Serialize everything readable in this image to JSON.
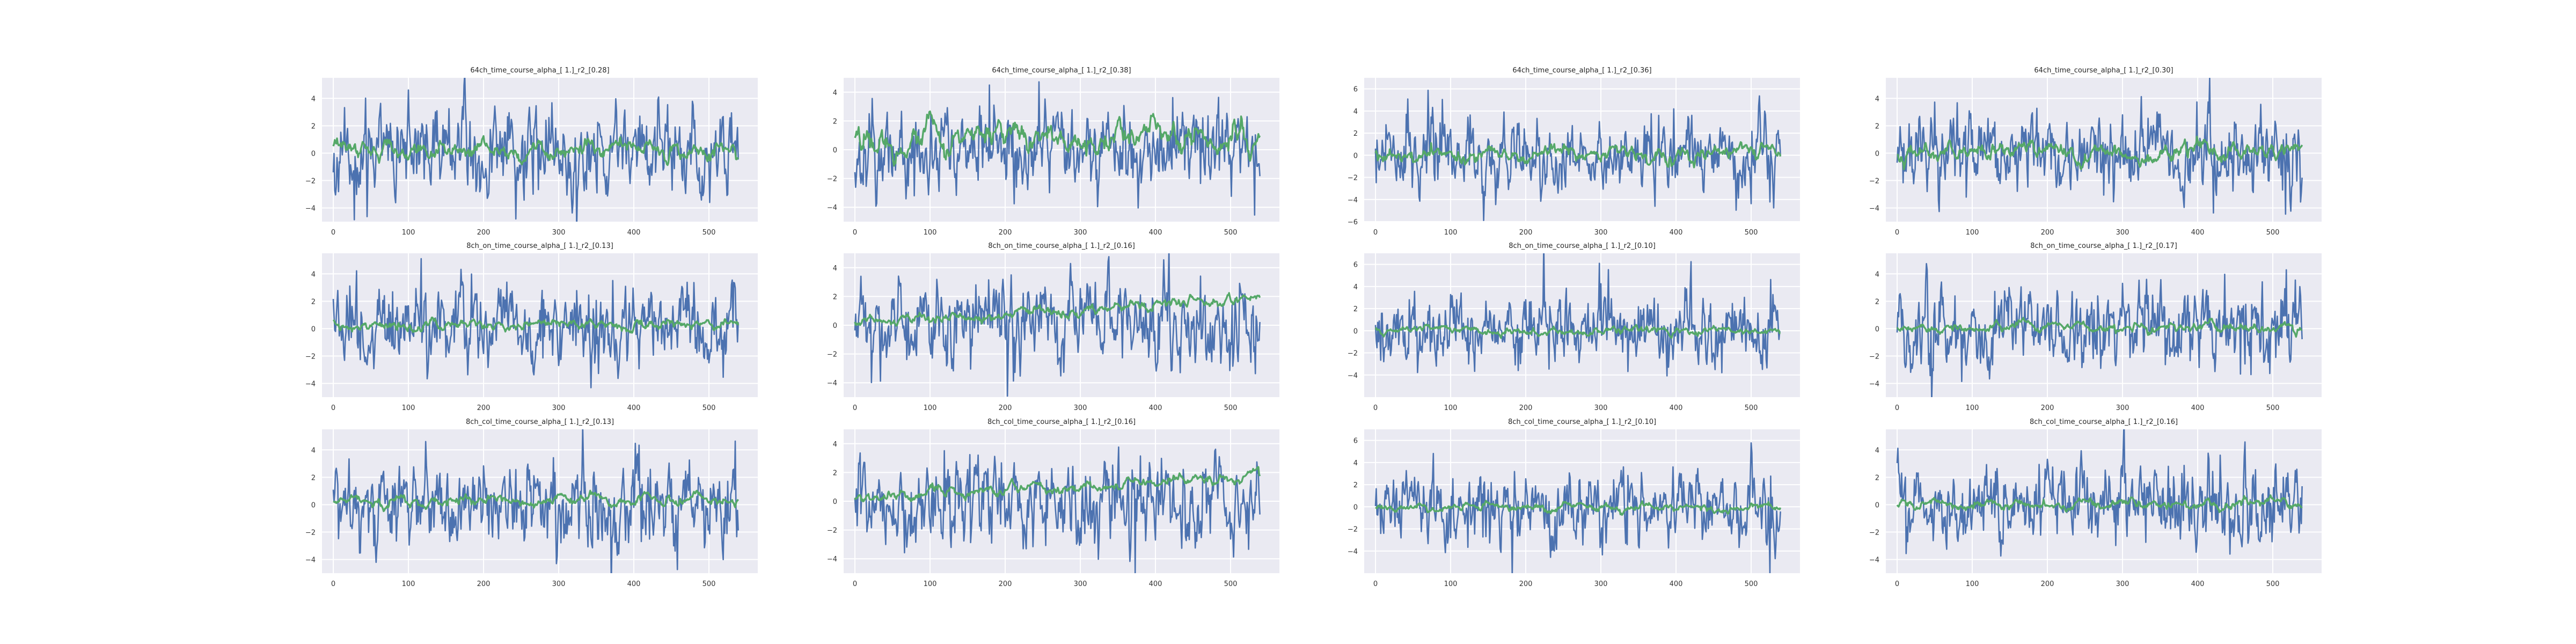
{
  "chart_data": [
    {
      "type": "line",
      "title": "64ch_time_course_alpha_[ 1.]_r2_[0.28]",
      "xlim": [
        -15,
        565
      ],
      "ylim": [
        -5,
        5.5
      ],
      "xticks": [
        0,
        100,
        200,
        300,
        400,
        500
      ],
      "yticks": [
        -4,
        -2,
        0,
        2,
        4
      ],
      "n_points": 540,
      "series": [
        {
          "amplitude": 1.45,
          "seed": 11
        },
        {
          "amplitude": 0.48,
          "offset": 0.25,
          "seed": 12
        }
      ]
    },
    {
      "type": "line",
      "title": "64ch_time_course_alpha_[ 1.]_r2_[0.38]",
      "xlim": [
        -15,
        565
      ],
      "ylim": [
        -5,
        5
      ],
      "xticks": [
        0,
        100,
        200,
        300,
        400,
        500
      ],
      "yticks": [
        -4,
        -2,
        0,
        2,
        4
      ],
      "n_points": 540,
      "series": [
        {
          "amplitude": 1.5,
          "seed": 21
        },
        {
          "amplitude": 0.75,
          "offset": 0.8,
          "seed": 22
        }
      ]
    },
    {
      "type": "line",
      "title": "64ch_time_course_alpha_[ 1.]_r2_[0.36]",
      "xlim": [
        -15,
        565
      ],
      "ylim": [
        -6,
        7
      ],
      "xticks": [
        0,
        100,
        200,
        300,
        400,
        500
      ],
      "yticks": [
        -6,
        -4,
        -2,
        0,
        2,
        4,
        6
      ],
      "n_points": 540,
      "series": [
        {
          "amplitude": 1.55,
          "seed": 31
        },
        {
          "amplitude": 0.55,
          "offset": 0.1,
          "seed": 32
        }
      ]
    },
    {
      "type": "line",
      "title": "64ch_time_course_alpha_[ 1.]_r2_[0.30]",
      "xlim": [
        -15,
        565
      ],
      "ylim": [
        -5,
        5.5
      ],
      "xticks": [
        0,
        100,
        200,
        300,
        400,
        500
      ],
      "yticks": [
        -4,
        -2,
        0,
        2,
        4
      ],
      "n_points": 540,
      "series": [
        {
          "amplitude": 1.45,
          "seed": 41
        },
        {
          "amplitude": 0.5,
          "offset": 0.1,
          "seed": 42
        }
      ]
    },
    {
      "type": "line",
      "title": "8ch_on_time_course_alpha_[ 1.]_r2_[0.13]",
      "xlim": [
        -15,
        565
      ],
      "ylim": [
        -5,
        5.5
      ],
      "xticks": [
        0,
        100,
        200,
        300,
        400,
        500
      ],
      "yticks": [
        -4,
        -2,
        0,
        2,
        4
      ],
      "n_points": 540,
      "series": [
        {
          "amplitude": 1.45,
          "seed": 51
        },
        {
          "amplitude": 0.3,
          "offset": 0.35,
          "seed": 52
        }
      ]
    },
    {
      "type": "line",
      "title": "8ch_on_time_course_alpha_[ 1.]_r2_[0.16]",
      "xlim": [
        -15,
        565
      ],
      "ylim": [
        -5,
        5
      ],
      "xticks": [
        0,
        100,
        200,
        300,
        400,
        500
      ],
      "yticks": [
        -4,
        -2,
        0,
        2,
        4
      ],
      "n_points": 540,
      "series": [
        {
          "amplitude": 1.5,
          "seed": 61
        },
        {
          "amplitude": 0.3,
          "offset": 0.2,
          "trend": 1.5,
          "seed": 62
        }
      ]
    },
    {
      "type": "line",
      "title": "8ch_on_time_course_alpha_[ 1.]_r2_[0.10]",
      "xlim": [
        -15,
        565
      ],
      "ylim": [
        -6,
        7
      ],
      "xticks": [
        0,
        100,
        200,
        300,
        400,
        500
      ],
      "yticks": [
        -4,
        -2,
        0,
        2,
        4,
        6
      ],
      "n_points": 540,
      "series": [
        {
          "amplitude": 1.55,
          "seed": 71
        },
        {
          "amplitude": 0.3,
          "offset": 0.0,
          "seed": 72
        }
      ]
    },
    {
      "type": "line",
      "title": "8ch_on_time_course_alpha_[ 1.]_r2_[0.17]",
      "xlim": [
        -15,
        565
      ],
      "ylim": [
        -5,
        5.5
      ],
      "xticks": [
        0,
        100,
        200,
        300,
        400,
        500
      ],
      "yticks": [
        -4,
        -2,
        0,
        2,
        4
      ],
      "n_points": 540,
      "series": [
        {
          "amplitude": 1.45,
          "seed": 81
        },
        {
          "amplitude": 0.28,
          "offset": 0.05,
          "seed": 82
        }
      ]
    },
    {
      "type": "line",
      "title": "8ch_col_time_course_alpha_[ 1.]_r2_[0.13]",
      "xlim": [
        -15,
        565
      ],
      "ylim": [
        -5,
        5.5
      ],
      "xticks": [
        0,
        100,
        200,
        300,
        400,
        500
      ],
      "yticks": [
        -4,
        -2,
        0,
        2,
        4
      ],
      "n_points": 540,
      "series": [
        {
          "amplitude": 1.45,
          "seed": 91
        },
        {
          "amplitude": 0.3,
          "offset": 0.35,
          "seed": 92
        }
      ]
    },
    {
      "type": "line",
      "title": "8ch_col_time_course_alpha_[ 1.]_r2_[0.16]",
      "xlim": [
        -15,
        565
      ],
      "ylim": [
        -5,
        5
      ],
      "xticks": [
        0,
        100,
        200,
        300,
        400,
        500
      ],
      "yticks": [
        -4,
        -2,
        0,
        2,
        4
      ],
      "n_points": 540,
      "series": [
        {
          "amplitude": 1.5,
          "seed": 101
        },
        {
          "amplitude": 0.3,
          "offset": 0.2,
          "trend": 1.5,
          "seed": 102
        }
      ]
    },
    {
      "type": "line",
      "title": "8ch_col_time_course_alpha_[ 1.]_r2_[0.10]",
      "xlim": [
        -15,
        565
      ],
      "ylim": [
        -6,
        7
      ],
      "xticks": [
        0,
        100,
        200,
        300,
        400,
        500
      ],
      "yticks": [
        -4,
        -2,
        0,
        2,
        4,
        6
      ],
      "n_points": 540,
      "series": [
        {
          "amplitude": 1.55,
          "seed": 111
        },
        {
          "amplitude": 0.3,
          "offset": 0.0,
          "seed": 112
        }
      ]
    },
    {
      "type": "line",
      "title": "8ch_col_time_course_alpha_[ 1.]_r2_[0.16]",
      "xlim": [
        -15,
        565
      ],
      "ylim": [
        -5,
        5.5
      ],
      "xticks": [
        0,
        100,
        200,
        300,
        400,
        500
      ],
      "yticks": [
        -4,
        -2,
        0,
        2,
        4
      ],
      "n_points": 540,
      "series": [
        {
          "amplitude": 1.45,
          "seed": 121
        },
        {
          "amplitude": 0.28,
          "offset": 0.05,
          "seed": 122
        }
      ]
    }
  ],
  "colors": {
    "noisy": "#4c72b0",
    "smooth": "#55a868",
    "axes_bg": "#eaeaf2",
    "grid": "#ffffff"
  }
}
